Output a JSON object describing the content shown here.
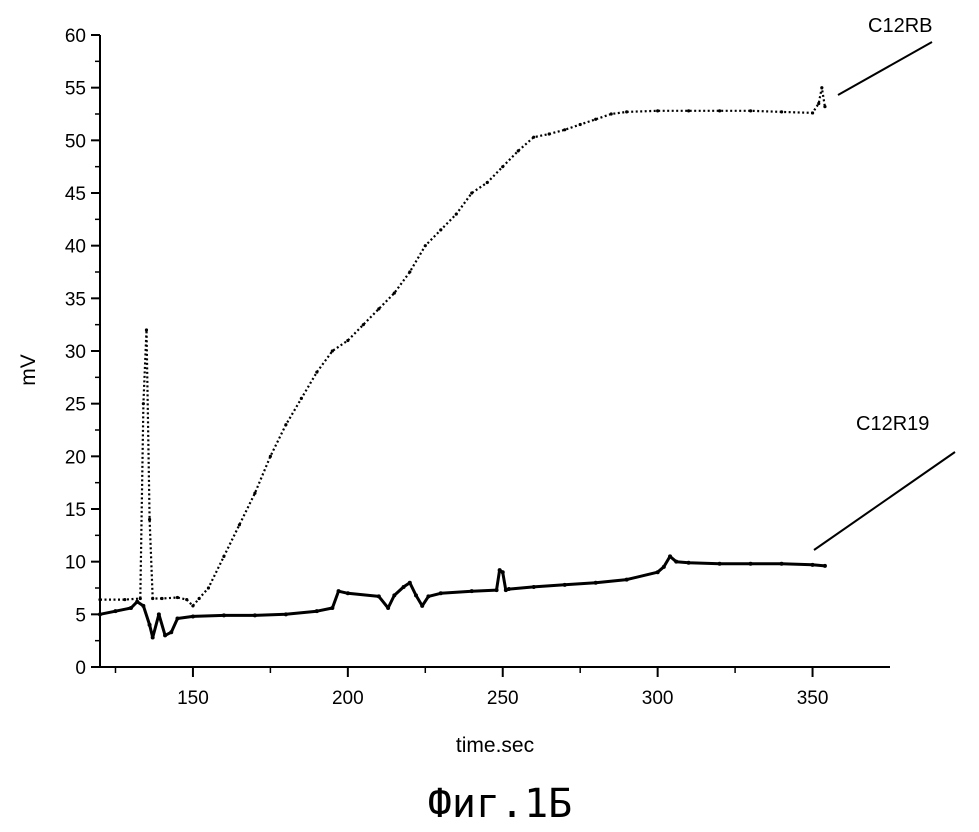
{
  "chart_data": {
    "type": "line",
    "title": "",
    "xlabel": "time.sec",
    "ylabel": "mV",
    "xlim": [
      120,
      375
    ],
    "ylim": [
      0,
      60
    ],
    "x_ticks": [
      150,
      200,
      250,
      300,
      350
    ],
    "y_ticks": [
      0,
      5,
      10,
      15,
      20,
      25,
      30,
      35,
      40,
      45,
      50,
      55,
      60
    ],
    "grid": false,
    "caption": "Фиг.1Б",
    "series": [
      {
        "name": "C12RB",
        "style": "dotted",
        "color": "#000000",
        "x": [
          120,
          128,
          133,
          134,
          135,
          136,
          137,
          140,
          145,
          148,
          150,
          152,
          155,
          160,
          165,
          170,
          175,
          180,
          185,
          190,
          195,
          200,
          205,
          210,
          215,
          220,
          225,
          230,
          235,
          240,
          245,
          250,
          255,
          260,
          265,
          270,
          275,
          280,
          285,
          290,
          300,
          310,
          320,
          330,
          340,
          350,
          352,
          353,
          354
        ],
        "y": [
          6.4,
          6.4,
          6.5,
          25,
          32,
          14,
          6.5,
          6.5,
          6.6,
          6.4,
          5.8,
          6.5,
          7.5,
          10.5,
          13.5,
          16.5,
          20.0,
          23.0,
          25.5,
          28.0,
          30.0,
          31.0,
          32.5,
          34.0,
          35.5,
          37.5,
          40.0,
          41.5,
          43.0,
          45.0,
          46.0,
          47.5,
          49.0,
          50.3,
          50.6,
          51.0,
          51.5,
          52.0,
          52.5,
          52.7,
          52.8,
          52.8,
          52.8,
          52.8,
          52.7,
          52.6,
          53.5,
          55.0,
          53.2
        ]
      },
      {
        "name": "C12R19",
        "style": "solid",
        "color": "#000000",
        "x": [
          120,
          125,
          130,
          132,
          134,
          136,
          137,
          139,
          141,
          143,
          145,
          150,
          160,
          170,
          180,
          190,
          195,
          197,
          200,
          210,
          213,
          215,
          218,
          220,
          222,
          224,
          226,
          230,
          240,
          248,
          249,
          250,
          251,
          252,
          260,
          270,
          280,
          290,
          300,
          302,
          304,
          306,
          310,
          320,
          330,
          340,
          350,
          354
        ],
        "y": [
          5.0,
          5.3,
          5.6,
          6.2,
          5.8,
          4.0,
          2.8,
          5.0,
          3.0,
          3.3,
          4.6,
          4.8,
          4.9,
          4.9,
          5.0,
          5.3,
          5.6,
          7.2,
          7.0,
          6.7,
          5.6,
          6.8,
          7.6,
          8.0,
          6.8,
          5.8,
          6.7,
          7.0,
          7.2,
          7.3,
          9.2,
          9.0,
          7.3,
          7.4,
          7.6,
          7.8,
          8.0,
          8.3,
          9.0,
          9.5,
          10.5,
          10.0,
          9.9,
          9.8,
          9.8,
          9.8,
          9.7,
          9.6
        ]
      }
    ],
    "annotations": [
      {
        "text": "C12RB",
        "target_series": "C12RB"
      },
      {
        "text": "C12R19",
        "target_series": "C12R19"
      }
    ]
  }
}
